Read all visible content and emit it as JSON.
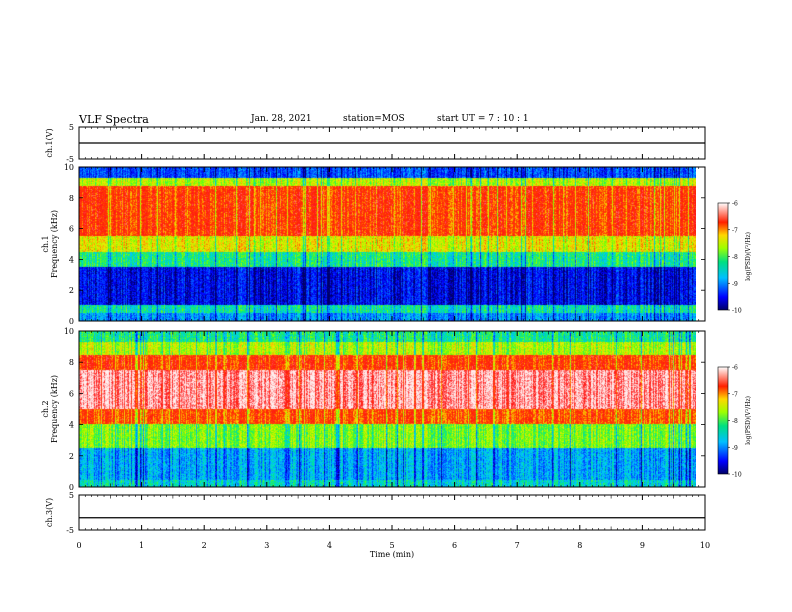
{
  "header": {
    "title": "VLF Spectra",
    "date": "Jan. 28, 2021",
    "station": "station=MOS",
    "start": "start  UT =   7 : 10 : 1"
  },
  "chart_data": [
    {
      "type": "line",
      "panel": "ch1-waveform",
      "ylabel": "ch.1(V)",
      "ylim": [
        -5,
        5
      ],
      "yticks": [
        "5",
        "-5"
      ],
      "x": [
        0,
        10
      ],
      "values": [
        0,
        0
      ],
      "color": "#000000"
    },
    {
      "type": "heatmap",
      "panel": "ch1-spectrogram",
      "ylabel_line1": "ch.1",
      "ylabel_line2": "Frequency (kHz)",
      "ylim": [
        0,
        10
      ],
      "yticks": [
        "0",
        "2",
        "4",
        "6",
        "8",
        "10"
      ],
      "xlim": [
        0,
        9.85
      ],
      "colorbar": {
        "label": "log(PSD)(V²/Hz)",
        "range": [
          -10,
          -6
        ],
        "ticks": [
          "-6",
          "-7",
          "-8",
          "-9",
          "-10"
        ]
      },
      "levels": [
        {
          "f_min": 0,
          "f_max": 0.5,
          "log_psd": -9.0
        },
        {
          "f_min": 0.5,
          "f_max": 1.0,
          "log_psd": -8.5
        },
        {
          "f_min": 1.0,
          "f_max": 3.5,
          "log_psd": -9.6
        },
        {
          "f_min": 3.5,
          "f_max": 4.5,
          "log_psd": -8.4
        },
        {
          "f_min": 4.5,
          "f_max": 5.5,
          "log_psd": -7.6
        },
        {
          "f_min": 5.5,
          "f_max": 8.8,
          "log_psd": -6.9
        },
        {
          "f_min": 8.8,
          "f_max": 9.3,
          "log_psd": -7.8
        },
        {
          "f_min": 9.3,
          "f_max": 10,
          "log_psd": -9.3
        }
      ]
    },
    {
      "type": "heatmap",
      "panel": "ch2-spectrogram",
      "ylabel_line1": "ch.2",
      "ylabel_line2": "Frequency (kHz)",
      "ylim": [
        0,
        10
      ],
      "yticks": [
        "0",
        "2",
        "4",
        "6",
        "8",
        "10"
      ],
      "xlim": [
        0,
        9.85
      ],
      "colorbar": {
        "label": "log(PSD)(V²/Hz)",
        "range": [
          -10,
          -6
        ],
        "ticks": [
          "-6",
          "-7",
          "-8",
          "-9",
          "-10"
        ]
      },
      "levels": [
        {
          "f_min": 0,
          "f_max": 0.4,
          "log_psd": -8.6
        },
        {
          "f_min": 0.4,
          "f_max": 2.5,
          "log_psd": -8.9
        },
        {
          "f_min": 2.5,
          "f_max": 4.0,
          "log_psd": -8.0
        },
        {
          "f_min": 4.0,
          "f_max": 5.0,
          "log_psd": -7.0
        },
        {
          "f_min": 5.0,
          "f_max": 7.5,
          "log_psd": -6.2
        },
        {
          "f_min": 7.5,
          "f_max": 8.5,
          "log_psd": -6.9
        },
        {
          "f_min": 8.5,
          "f_max": 9.3,
          "log_psd": -7.8
        },
        {
          "f_min": 9.3,
          "f_max": 10,
          "log_psd": -8.4
        }
      ]
    },
    {
      "type": "line",
      "panel": "ch3-waveform",
      "ylabel": "ch.3(V)",
      "ylim": [
        -5,
        5
      ],
      "yticks": [
        "5",
        "-5"
      ],
      "x": [
        0,
        10
      ],
      "values": [
        -1.5,
        -1.5
      ],
      "color": "#000000"
    }
  ],
  "xaxis": {
    "label": "Time  (min)",
    "range": [
      0,
      10
    ],
    "ticks": [
      "0",
      "1",
      "2",
      "3",
      "4",
      "5",
      "6",
      "7",
      "8",
      "9",
      "10"
    ]
  }
}
